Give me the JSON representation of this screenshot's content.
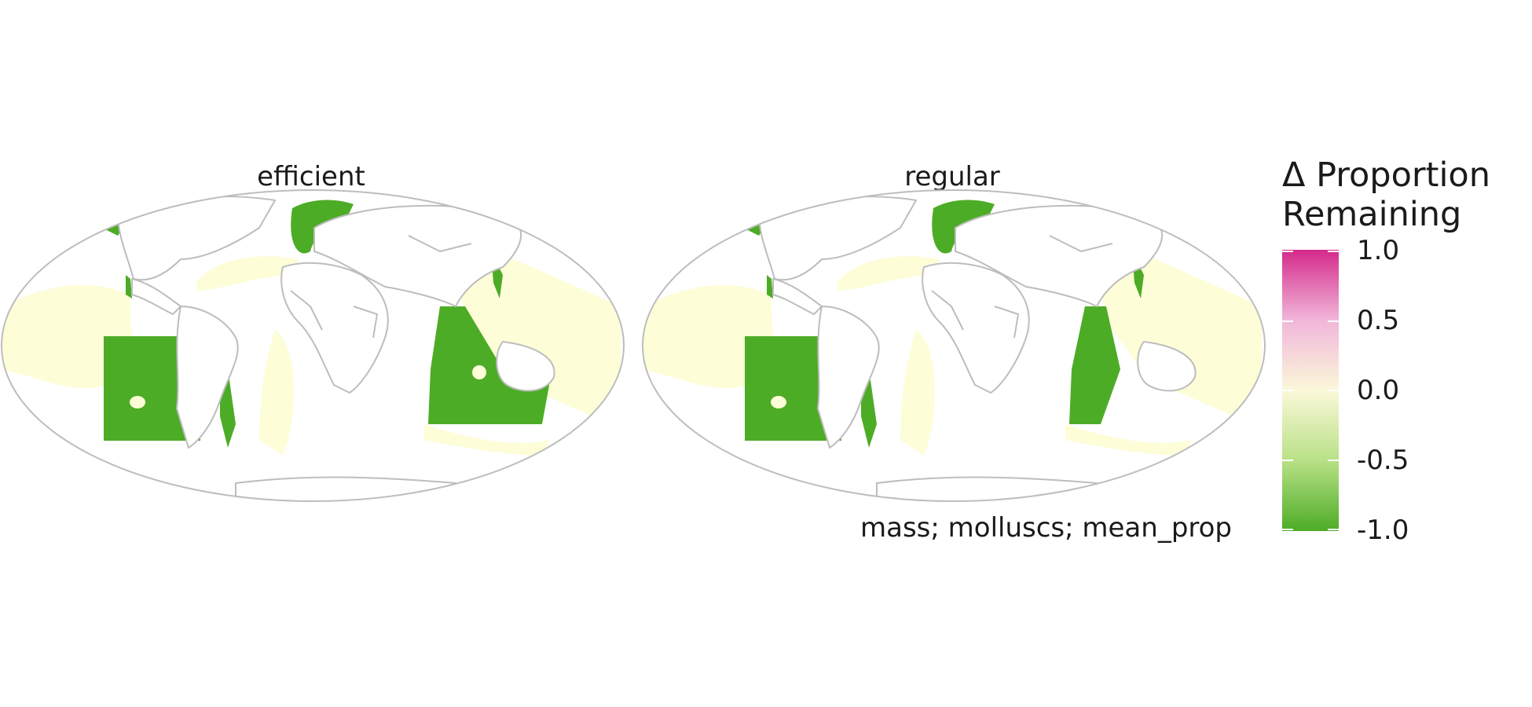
{
  "panels": [
    {
      "title": "efficient"
    },
    {
      "title": "regular"
    }
  ],
  "caption": "mass; molluscs; mean_prop",
  "legend": {
    "title_line1": "Δ Proportion",
    "title_line2": "Remaining",
    "ticks": [
      "1.0",
      "0.5",
      "0.0",
      "-0.5",
      "-1.0"
    ],
    "scale_min": -1.0,
    "scale_max": 1.0,
    "colors": {
      "high": "#d42a8a",
      "mid": "#fbf8d9",
      "low": "#4dac26"
    }
  },
  "map_colors": {
    "land": "#ffffff",
    "border": "#bdbdbd",
    "loss": "#4dac26",
    "near_zero": "#fdfdd8"
  }
}
